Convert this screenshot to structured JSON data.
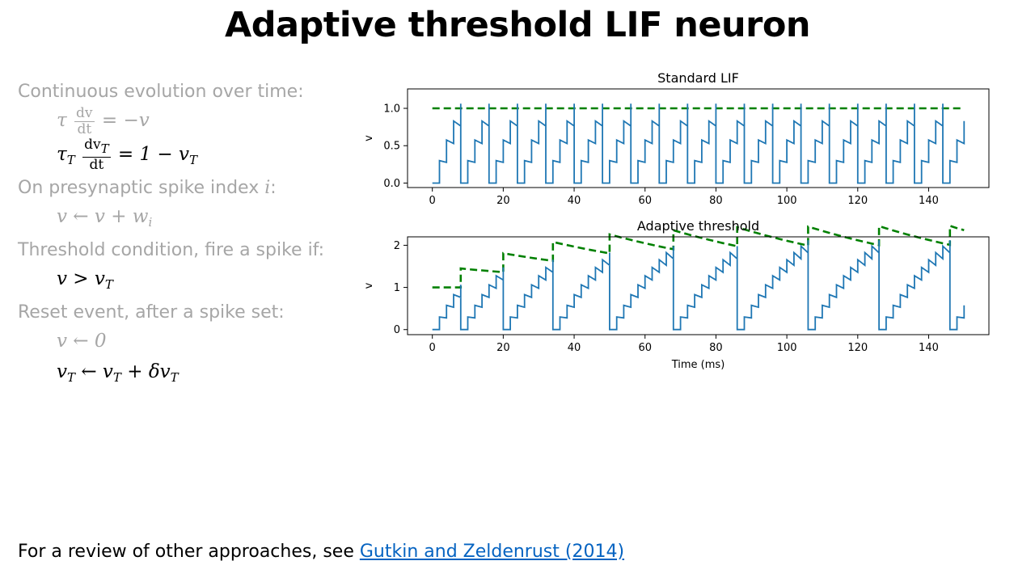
{
  "title": "Adaptive threshold LIF neuron",
  "left": {
    "head1": "Continuous evolution over time:",
    "eq1": {
      "lhs": "τ",
      "num": "dv",
      "den": "dt",
      "rhs": "= −v"
    },
    "eq2": {
      "lhs": "τ",
      "lhs_sub": "T",
      "num_main": "dv",
      "num_sub": "T",
      "den": "dt",
      "rhs": "= 1 − v",
      "rhs_sub": "T"
    },
    "head2_pre": "On presynaptic spike index ",
    "head2_var": "i",
    "head2_post": ":",
    "eq3_main": "v ← v + w",
    "eq3_sub": "i",
    "head3": "Threshold condition, fire a spike if:",
    "eq4_main": "v > v",
    "eq4_sub": "T",
    "head4": "Reset event, after a spike set:",
    "eq5": "v ← 0",
    "eq6_a": "v",
    "eq6_a_sub": "T",
    "eq6_b": " ← v",
    "eq6_b_sub": "T",
    "eq6_c": " + δv",
    "eq6_c_sub": "T"
  },
  "footer": {
    "text": "For a review of other approaches, see ",
    "link": "Gutkin and Zeldenrust (2014)"
  },
  "colors": {
    "v": "#1f77b4",
    "threshold": "#008000"
  },
  "chart_data": [
    {
      "type": "line",
      "title": "Standard LIF",
      "xlabel": "",
      "ylabel": "v",
      "xlim": [
        -7,
        157
      ],
      "ylim": [
        -0.06,
        1.26
      ],
      "xticks": [
        0,
        20,
        40,
        60,
        80,
        100,
        120,
        140
      ],
      "yticks": [
        0.0,
        0.5,
        1.0
      ],
      "ytick_labels": [
        "0.0",
        "0.5",
        "1.0"
      ],
      "series": [
        {
          "kind": "v",
          "params": {
            "dt_in": 2,
            "w": 0.3,
            "decay": 0.92,
            "start_ms": 2,
            "thr0": 1.0,
            "dthr": 0.0,
            "tauT": 1000000000.0,
            "t_end": 150
          }
        },
        {
          "kind": "threshold",
          "dashed": true
        }
      ]
    },
    {
      "type": "line",
      "title": "Adaptive threshold",
      "xlabel": "Time (ms)",
      "ylabel": "v",
      "xlim": [
        -7,
        157
      ],
      "ylim": [
        -0.12,
        2.2
      ],
      "xticks": [
        0,
        20,
        40,
        60,
        80,
        100,
        120,
        140
      ],
      "yticks": [
        0,
        1,
        2
      ],
      "ytick_labels": [
        "0",
        "1",
        "2"
      ],
      "series": [
        {
          "kind": "v",
          "params": {
            "dt_in": 2,
            "w": 0.3,
            "decay": 0.92,
            "start_ms": 2,
            "thr0": 1.0,
            "dthr": 0.45,
            "tauT": 55,
            "t_end": 150
          }
        },
        {
          "kind": "threshold",
          "dashed": true
        }
      ]
    }
  ]
}
